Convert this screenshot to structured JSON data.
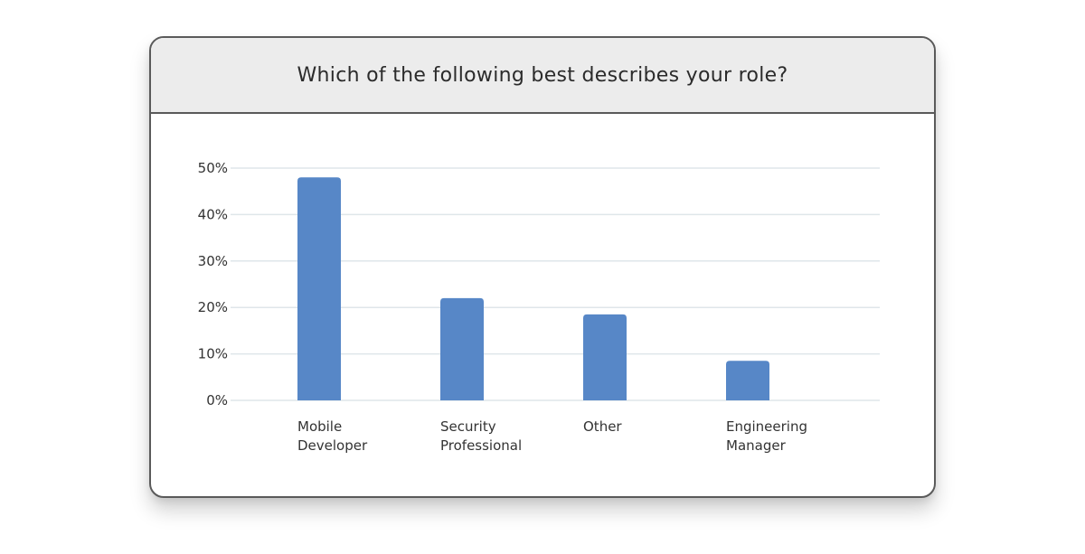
{
  "card": {
    "title": "Which of the following best describes your role?"
  },
  "colors": {
    "bar": "#5787c7",
    "grid": "#dfe6ea",
    "header_bg": "#ececec",
    "border": "#5a5a5a"
  },
  "chart_data": {
    "type": "bar",
    "title": "Which of the following best describes your role?",
    "categories": [
      [
        "Mobile",
        "Developer"
      ],
      [
        "Security",
        "Professional"
      ],
      [
        "Other"
      ],
      [
        "Engineering",
        "Manager"
      ]
    ],
    "values": [
      48,
      22,
      18.5,
      8.5
    ],
    "y_ticks": [
      "0%",
      "10%",
      "20%",
      "30%",
      "40%",
      "50%"
    ],
    "ylim": [
      0,
      50
    ],
    "grid": true,
    "xlabel": "",
    "ylabel": ""
  }
}
